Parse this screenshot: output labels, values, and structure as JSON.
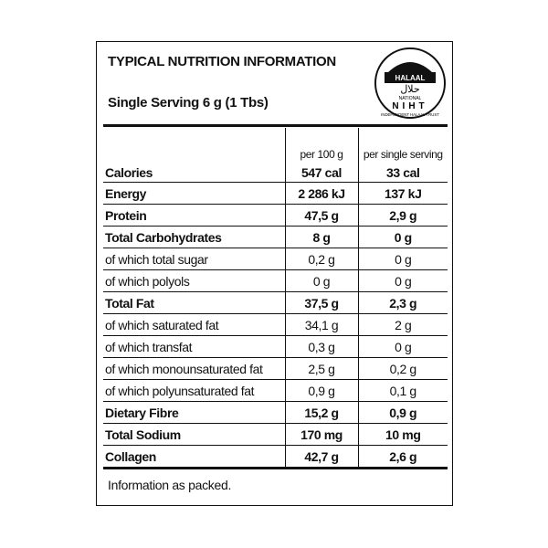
{
  "header": {
    "title": "TYPICAL NUTRITION INFORMATION",
    "serving": "Single Serving 6 g (1 Tbs)"
  },
  "logo": {
    "top": "HALAAL",
    "arabic": "حلال",
    "middle": "NATIONAL",
    "letters": "NIHT",
    "bottom": "INDEPENDENT HALAAL TRUST"
  },
  "table": {
    "columns": [
      "per 100 g",
      "per single serving"
    ],
    "rows": [
      {
        "label": "Calories",
        "per_100g": "547 cal",
        "per_serving": "33 cal",
        "bold": true
      },
      {
        "label": "Energy",
        "per_100g": "2 286 kJ",
        "per_serving": "137 kJ",
        "bold": true
      },
      {
        "label": "Protein",
        "per_100g": "47,5 g",
        "per_serving": "2,9 g",
        "bold": true
      },
      {
        "label": "Total Carbohydrates",
        "per_100g": "8 g",
        "per_serving": "0 g",
        "bold": true
      },
      {
        "label": "of which total sugar",
        "per_100g": "0,2 g",
        "per_serving": "0 g",
        "bold": false
      },
      {
        "label": "of which polyols",
        "per_100g": "0 g",
        "per_serving": "0 g",
        "bold": false
      },
      {
        "label": "Total Fat",
        "per_100g": "37,5 g",
        "per_serving": "2,3 g",
        "bold": true
      },
      {
        "label": "of which saturated fat",
        "per_100g": "34,1 g",
        "per_serving": "2 g",
        "bold": false
      },
      {
        "label": "of which transfat",
        "per_100g": "0,3 g",
        "per_serving": "0 g",
        "bold": false
      },
      {
        "label": "of which monounsaturated fat",
        "per_100g": "2,5 g",
        "per_serving": "0,2 g",
        "bold": false
      },
      {
        "label": "of which polyunsaturated fat",
        "per_100g": "0,9 g",
        "per_serving": "0,1 g",
        "bold": false
      },
      {
        "label": "Dietary Fibre",
        "per_100g": "15,2 g",
        "per_serving": "0,9 g",
        "bold": true
      },
      {
        "label": "Total Sodium",
        "per_100g": "170 mg",
        "per_serving": "10 mg",
        "bold": true
      },
      {
        "label": "Collagen",
        "per_100g": "42,7 g",
        "per_serving": "2,6 g",
        "bold": true
      }
    ]
  },
  "footer": "Information as packed."
}
